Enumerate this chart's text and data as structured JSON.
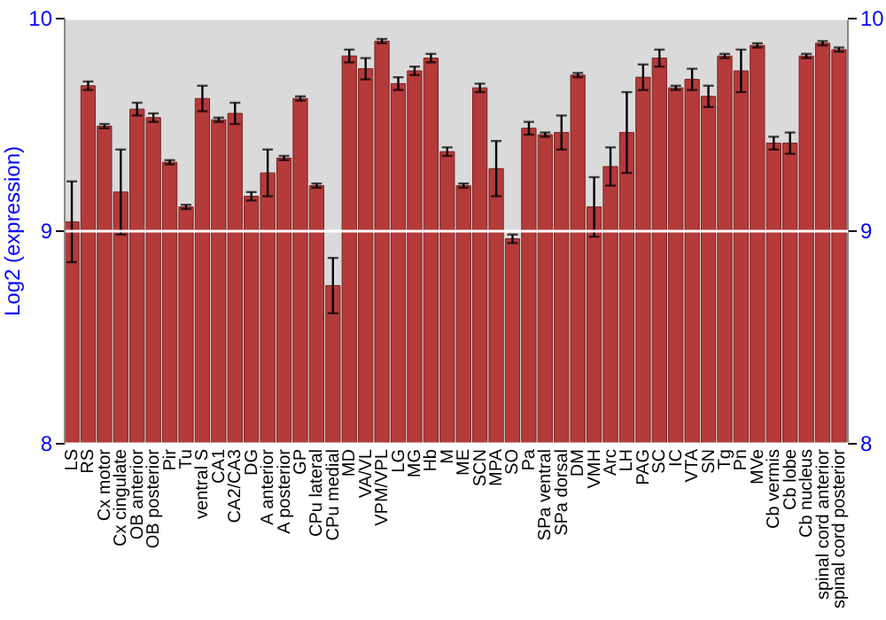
{
  "chart_data": {
    "type": "bar",
    "ylabel": "Log2 (expression)",
    "categories": [
      "LS",
      "RS",
      "Cx motor",
      "Cx cingulate",
      "OB anterior",
      "OB posterior",
      "Pir",
      "Tu",
      "ventral S",
      "CA1",
      "CA2/CA3",
      "DG",
      "A anterior",
      "A posterior",
      "GP",
      "CPu lateral",
      "CPu medial",
      "MD",
      "VA/VL",
      "VPM/VPL",
      "LG",
      "MG",
      "Hb",
      "M",
      "ME",
      "SCN",
      "MPA",
      "SO",
      "Pa",
      "SPa ventral",
      "SPa dorsal",
      "DM",
      "VMH",
      "Arc",
      "LH",
      "PAG",
      "SC",
      "IC",
      "VTA",
      "SN",
      "Tg",
      "Pn",
      "MVe",
      "Cb vermis",
      "Cb lobe",
      "Cb nucleus",
      "spinal cord anterior",
      "spinal cord posterior"
    ],
    "values": [
      9.04,
      9.68,
      9.49,
      9.18,
      9.57,
      9.53,
      9.32,
      9.11,
      9.62,
      9.52,
      9.55,
      9.16,
      9.27,
      9.34,
      9.62,
      9.21,
      8.74,
      9.82,
      9.76,
      9.89,
      9.69,
      9.75,
      9.81,
      9.37,
      9.21,
      9.67,
      9.29,
      8.96,
      9.48,
      9.45,
      9.46,
      9.73,
      9.11,
      9.3,
      9.46,
      9.72,
      9.81,
      9.67,
      9.71,
      9.63,
      9.82,
      9.75,
      9.87,
      9.41,
      9.41,
      9.82,
      9.88,
      9.85
    ],
    "errors": [
      0.19,
      0.02,
      0.01,
      0.2,
      0.03,
      0.02,
      0.01,
      0.01,
      0.06,
      0.01,
      0.05,
      0.02,
      0.11,
      0.01,
      0.01,
      0.01,
      0.13,
      0.03,
      0.05,
      0.01,
      0.03,
      0.02,
      0.02,
      0.02,
      0.01,
      0.02,
      0.13,
      0.02,
      0.03,
      0.01,
      0.08,
      0.01,
      0.14,
      0.09,
      0.19,
      0.06,
      0.04,
      0.01,
      0.05,
      0.05,
      0.01,
      0.1,
      0.01,
      0.03,
      0.05,
      0.01,
      0.01,
      0.01
    ],
    "color": "#b53a3a",
    "ylim": [
      8,
      10
    ],
    "yticks": [
      8,
      9,
      10
    ],
    "y2lim": [
      8,
      10
    ],
    "y2ticks": [
      8,
      9,
      10
    ],
    "grid": "y"
  }
}
